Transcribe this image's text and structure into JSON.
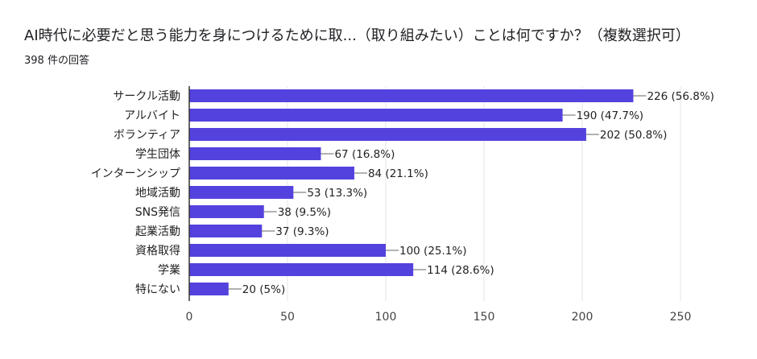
{
  "title": "AI時代に必要だと思う能力を身につけるために取...（取り組みたい）ことは何ですか？（複数選択可）",
  "subtitle": "398 件の回答",
  "colors": {
    "bar": "#5442de",
    "grid": "#e6e6e6",
    "axis": "#333333"
  },
  "chart_data": {
    "type": "bar",
    "orientation": "horizontal",
    "categories": [
      "サークル活動",
      "アルバイト",
      "ボランティア",
      "学生団体",
      "インターンシップ",
      "地域活動",
      "SNS発信",
      "起業活動",
      "資格取得",
      "学業",
      "特にない"
    ],
    "values": [
      226,
      190,
      202,
      67,
      84,
      53,
      38,
      37,
      100,
      114,
      20
    ],
    "value_labels": [
      "226 (56.8%)",
      "190 (47.7%)",
      "202 (50.8%)",
      "67 (16.8%)",
      "84 (21.1%)",
      "53 (13.3%)",
      "38 (9.5%)",
      "37 (9.3%)",
      "100 (25.1%)",
      "114 (28.6%)",
      "20 (5%)"
    ],
    "xlim": [
      0,
      250
    ],
    "xticks": [
      "0",
      "50",
      "100",
      "150",
      "200",
      "250"
    ],
    "grid": true,
    "legend": "none"
  }
}
